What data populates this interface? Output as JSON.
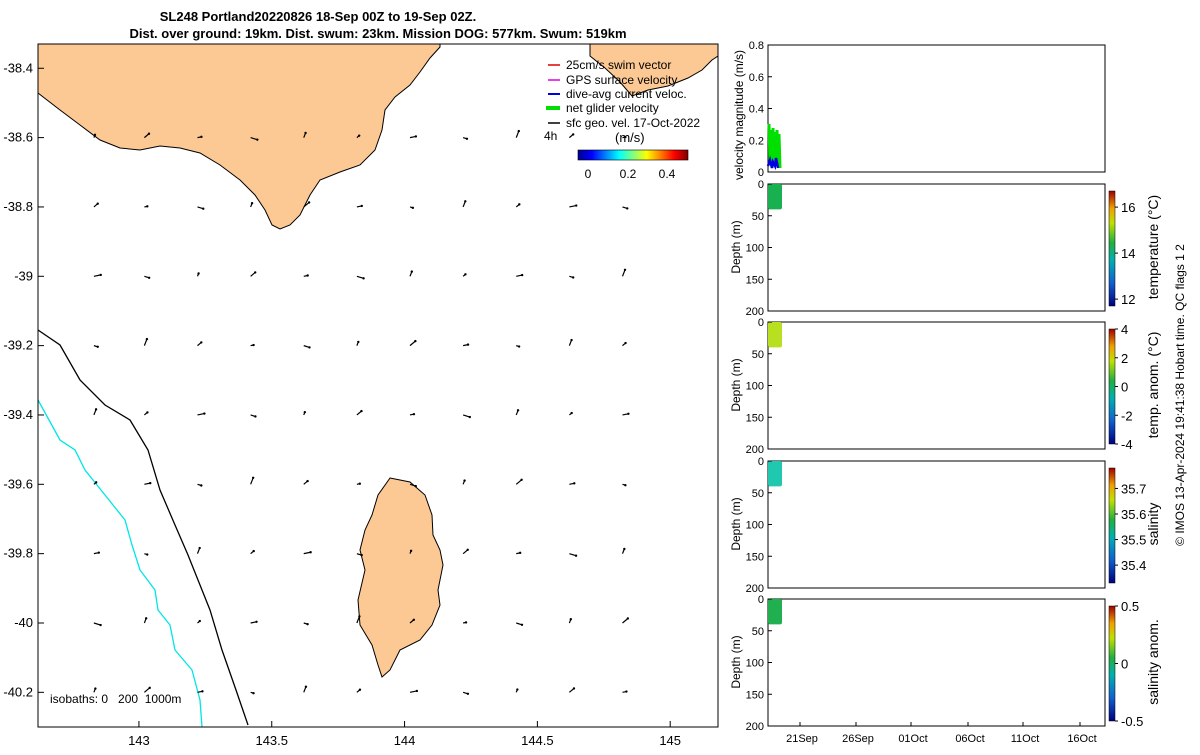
{
  "header": {
    "title": "SL248 Portland20220826 18-Sep 00Z to 19-Sep 02Z.",
    "subtitle": "Dist. over ground: 19km. Dist. swum: 23km. Mission DOG: 577km. Swum: 519km"
  },
  "map": {
    "x_ticks": [
      "143",
      "143.5",
      "144",
      "144.5",
      "145"
    ],
    "y_ticks": [
      "-38.4",
      "-38.6",
      "-38.8",
      "-39",
      "-39.2",
      "-39.4",
      "-39.6",
      "-39.8",
      "-40",
      "-40.2"
    ],
    "legend": {
      "items": [
        {
          "label": "25cm/s swim vector",
          "color": "#e00000"
        },
        {
          "label": "GPS surface velocity",
          "color": "#e000e0"
        },
        {
          "label": "dive-avg current veloc.",
          "color": "#0000e0"
        },
        {
          "label": "net glider velocity",
          "color": "#00e000"
        },
        {
          "label": "sfc geo. vel. 17-Oct-2022",
          "color": "#000000"
        }
      ],
      "time_label": "4h",
      "colorbar_title": "(m/s)",
      "colorbar_ticks": [
        "0",
        "0.2",
        "0.4"
      ]
    },
    "isobaths_label": "isobaths: 0   200  1000m",
    "land_color": "#fcc994",
    "isobath_1000_color": "#00e5e5"
  },
  "profiles": {
    "velocity": {
      "ylabel": "velocity magnitude (m/s)",
      "y_ticks": [
        "0",
        "0.2",
        "0.4",
        "0.6",
        "0.8"
      ]
    },
    "depth_ticks": [
      "0",
      "50",
      "100",
      "150",
      "200"
    ],
    "depth_label": "Depth (m)",
    "panels": [
      {
        "label": "temperature (°C)",
        "ticks": [
          "12",
          "14",
          "16"
        ]
      },
      {
        "label": "temp. anom. (°C)",
        "ticks": [
          "-4",
          "-2",
          "0",
          "2",
          "4"
        ]
      },
      {
        "label": "salinity",
        "ticks": [
          "35.4",
          "35.5",
          "35.6",
          "35.7"
        ]
      },
      {
        "label": "salinity anom.",
        "ticks": [
          "-0.5",
          "0",
          "0.5"
        ]
      }
    ],
    "x_ticks": [
      "21Sep",
      "26Sep",
      "01Oct",
      "06Oct",
      "11Oct",
      "16Oct"
    ],
    "footer": "© IMOS 13-Apr-2024 19:41:38 Hobart time. QC flags 1  2"
  },
  "chart_data": [
    {
      "type": "scatter",
      "title": "SL248 Portland20220826 18-Sep 00Z to 19-Sep 02Z.",
      "xlim": [
        142.62,
        145.18
      ],
      "ylim": [
        -40.3,
        -38.33
      ],
      "x_ticks": [
        143,
        143.5,
        144,
        144.5,
        145
      ],
      "y_ticks": [
        -38.4,
        -38.6,
        -38.8,
        -39,
        -39.2,
        -39.4,
        -39.6,
        -39.8,
        -40,
        -40.2
      ],
      "legend": [
        "25cm/s swim vector",
        "GPS surface velocity",
        "dive-avg current veloc.",
        "net glider velocity",
        "sfc geo. vel. 17-Oct-2022"
      ],
      "colorbar": {
        "label": "(m/s)",
        "range": [
          0,
          0.5
        ]
      }
    },
    {
      "type": "line",
      "ylabel": "velocity magnitude (m/s)",
      "ylim": [
        0,
        0.8
      ],
      "series": [
        {
          "name": "net glider velocity",
          "color": "#00e000",
          "values": [
            0.3,
            0.05,
            0.28,
            0.06,
            0.25,
            0.04,
            0.27,
            0.08,
            0.22
          ]
        },
        {
          "name": "dive-avg current veloc.",
          "color": "#0000e0",
          "values": [
            0.04,
            0.07,
            0.03,
            0.06,
            0.02,
            0.05
          ]
        }
      ]
    },
    {
      "type": "scatter",
      "ylabel": "Depth (m)",
      "ylim": [
        200,
        0
      ],
      "colorbar": {
        "label": "temperature (°C)",
        "range": [
          11.7,
          16.7
        ]
      },
      "series": [
        {
          "depth_range": [
            0,
            40
          ],
          "value": 14.8
        }
      ]
    },
    {
      "type": "scatter",
      "ylabel": "Depth (m)",
      "ylim": [
        200,
        0
      ],
      "colorbar": {
        "label": "temp. anom. (°C)",
        "range": [
          -4,
          4
        ]
      },
      "series": [
        {
          "depth_range": [
            0,
            40
          ],
          "value": 1.5
        }
      ]
    },
    {
      "type": "scatter",
      "ylabel": "Depth (m)",
      "ylim": [
        200,
        0
      ],
      "colorbar": {
        "label": "salinity",
        "range": [
          35.33,
          35.78
        ]
      },
      "series": [
        {
          "depth_range": [
            0,
            40
          ],
          "value": 35.45
        }
      ]
    },
    {
      "type": "scatter",
      "ylabel": "Depth (m)",
      "ylim": [
        200,
        0
      ],
      "colorbar": {
        "label": "salinity anom.",
        "range": [
          -0.5,
          0.5
        ]
      },
      "series": [
        {
          "depth_range": [
            0,
            40
          ],
          "value": 0.0
        }
      ]
    }
  ]
}
